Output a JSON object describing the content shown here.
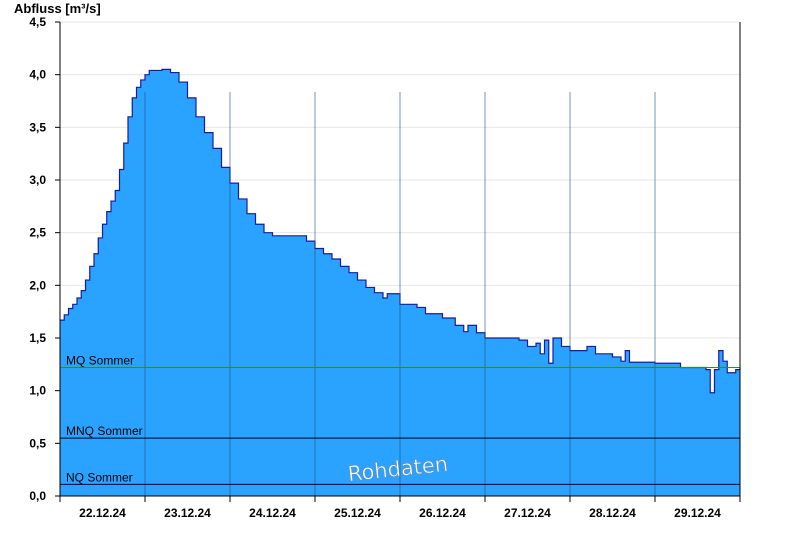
{
  "chart_data": {
    "type": "area",
    "ylabel": "Abfluss [m³/s]",
    "ylim": [
      0,
      4.5
    ],
    "yticks": [
      0,
      0.5,
      1.0,
      1.5,
      2.0,
      2.5,
      3.0,
      3.5,
      4.0,
      4.5
    ],
    "ytick_labels": [
      "0,0",
      "0,5",
      "1,0",
      "1,5",
      "2,0",
      "2,5",
      "3,0",
      "3,5",
      "4,0",
      "4,5"
    ],
    "xlim": [
      0,
      8.0
    ],
    "x_unit": "days since 22.12.24 00:00",
    "day_ticks": [
      1,
      2,
      3,
      4,
      5,
      6,
      7
    ],
    "x_labels": [
      {
        "x": 0.5,
        "label": "22.12.24"
      },
      {
        "x": 1.5,
        "label": "23.12.24"
      },
      {
        "x": 2.5,
        "label": "24.12.24"
      },
      {
        "x": 3.5,
        "label": "25.12.24"
      },
      {
        "x": 4.5,
        "label": "26.12.24"
      },
      {
        "x": 5.5,
        "label": "27.12.24"
      },
      {
        "x": 6.5,
        "label": "28.12.24"
      },
      {
        "x": 7.5,
        "label": "29.12.24"
      }
    ],
    "reference_lines": [
      {
        "name": "MQ Sommer",
        "value": 1.22,
        "color": "#2e8b2e"
      },
      {
        "name": "MNQ Sommer",
        "value": 0.55,
        "color": "#000000"
      },
      {
        "name": "NQ Sommer",
        "value": 0.11,
        "color": "#000000"
      }
    ],
    "watermark": "Rohdaten",
    "fill_color": "#29a3ff",
    "line_color": "#1a1aa0",
    "grid": "horizontal",
    "series": [
      {
        "points": [
          [
            0.0,
            1.67
          ],
          [
            0.05,
            1.72
          ],
          [
            0.1,
            1.78
          ],
          [
            0.15,
            1.82
          ],
          [
            0.2,
            1.88
          ],
          [
            0.25,
            1.95
          ],
          [
            0.3,
            2.05
          ],
          [
            0.35,
            2.18
          ],
          [
            0.4,
            2.3
          ],
          [
            0.45,
            2.45
          ],
          [
            0.5,
            2.58
          ],
          [
            0.55,
            2.7
          ],
          [
            0.6,
            2.8
          ],
          [
            0.65,
            2.9
          ],
          [
            0.7,
            3.1
          ],
          [
            0.75,
            3.35
          ],
          [
            0.8,
            3.6
          ],
          [
            0.85,
            3.78
          ],
          [
            0.9,
            3.88
          ],
          [
            0.95,
            3.95
          ],
          [
            1.0,
            4.0
          ],
          [
            1.05,
            4.04
          ],
          [
            1.2,
            4.05
          ],
          [
            1.3,
            4.02
          ],
          [
            1.4,
            3.93
          ],
          [
            1.5,
            3.78
          ],
          [
            1.6,
            3.6
          ],
          [
            1.7,
            3.45
          ],
          [
            1.8,
            3.3
          ],
          [
            1.9,
            3.12
          ],
          [
            2.0,
            2.97
          ],
          [
            2.1,
            2.82
          ],
          [
            2.2,
            2.68
          ],
          [
            2.3,
            2.58
          ],
          [
            2.4,
            2.5
          ],
          [
            2.5,
            2.47
          ],
          [
            2.7,
            2.47
          ],
          [
            2.9,
            2.42
          ],
          [
            3.0,
            2.35
          ],
          [
            3.1,
            2.3
          ],
          [
            3.2,
            2.25
          ],
          [
            3.3,
            2.18
          ],
          [
            3.4,
            2.12
          ],
          [
            3.5,
            2.05
          ],
          [
            3.6,
            1.98
          ],
          [
            3.7,
            1.93
          ],
          [
            3.8,
            1.88
          ],
          [
            3.85,
            1.92
          ],
          [
            4.0,
            1.82
          ],
          [
            4.2,
            1.79
          ],
          [
            4.3,
            1.73
          ],
          [
            4.5,
            1.69
          ],
          [
            4.65,
            1.62
          ],
          [
            4.75,
            1.56
          ],
          [
            4.8,
            1.62
          ],
          [
            4.9,
            1.55
          ],
          [
            5.0,
            1.5
          ],
          [
            5.4,
            1.48
          ],
          [
            5.5,
            1.42
          ],
          [
            5.6,
            1.45
          ],
          [
            5.65,
            1.35
          ],
          [
            5.7,
            1.48
          ],
          [
            5.75,
            1.26
          ],
          [
            5.8,
            1.5
          ],
          [
            5.9,
            1.42
          ],
          [
            6.0,
            1.38
          ],
          [
            6.2,
            1.42
          ],
          [
            6.3,
            1.35
          ],
          [
            6.5,
            1.32
          ],
          [
            6.6,
            1.28
          ],
          [
            6.65,
            1.38
          ],
          [
            6.7,
            1.27
          ],
          [
            7.0,
            1.26
          ],
          [
            7.25,
            1.26
          ],
          [
            7.3,
            1.22
          ],
          [
            7.5,
            1.22
          ],
          [
            7.6,
            1.2
          ],
          [
            7.65,
            0.98
          ],
          [
            7.7,
            1.2
          ],
          [
            7.75,
            1.38
          ],
          [
            7.8,
            1.28
          ],
          [
            7.85,
            1.17
          ],
          [
            7.95,
            1.2
          ],
          [
            8.0,
            1.22
          ]
        ]
      }
    ]
  }
}
